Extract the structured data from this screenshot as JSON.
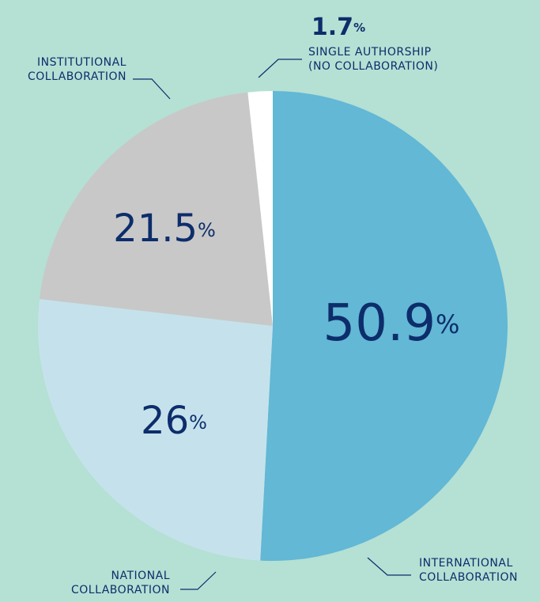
{
  "chart_data": {
    "type": "pie",
    "categories": [
      "INTERNATIONAL\nCOLLABORATION",
      "NATIONAL\nCOLLABORATION",
      "INSTITUTIONAL\nCOLLABORATION",
      "SINGLE AUTHORSHIP\n(NO COLLABORATION)"
    ],
    "values": [
      50.9,
      26,
      21.5,
      1.7
    ],
    "unit": "%",
    "colors": [
      "#62b8d5",
      "#c5e2ec",
      "#c8c8c8",
      "#ffffff"
    ]
  }
}
